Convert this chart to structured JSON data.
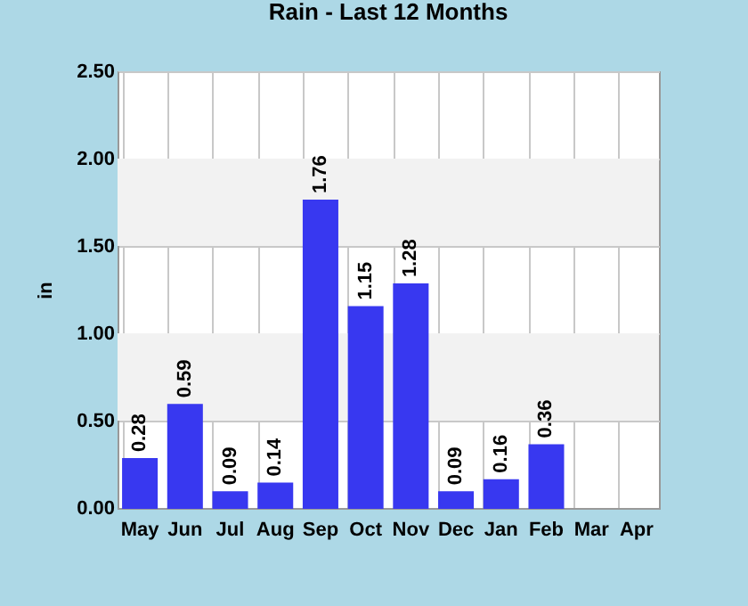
{
  "chart_data": {
    "type": "bar",
    "title": "Rain - Last 12 Months",
    "ylabel": "in",
    "categories": [
      "May",
      "Jun",
      "Jul",
      "Aug",
      "Sep",
      "Oct",
      "Nov",
      "Dec",
      "Jan",
      "Feb",
      "Mar",
      "Apr"
    ],
    "values": [
      0.28,
      0.59,
      0.09,
      0.14,
      1.76,
      1.15,
      1.28,
      0.09,
      0.16,
      0.36,
      null,
      null
    ],
    "color": "#3838f0",
    "data_labels": true,
    "grid": true,
    "ylim": [
      0,
      2.5
    ],
    "yticks": [
      {
        "value": 0,
        "label": "0.00"
      },
      {
        "value": 0.5,
        "label": "0.50"
      },
      {
        "value": 1,
        "label": "1.00"
      },
      {
        "value": 1.5,
        "label": "1.50"
      },
      {
        "value": 2,
        "label": "2.00"
      },
      {
        "value": 2.5,
        "label": "2.50"
      }
    ],
    "bands": [
      {
        "axis": "y",
        "from": 0.5,
        "to": 1,
        "color": "#f2f2f2"
      },
      {
        "axis": "y",
        "from": 1.5,
        "to": 2,
        "color": "#f2f2f2"
      }
    ]
  }
}
